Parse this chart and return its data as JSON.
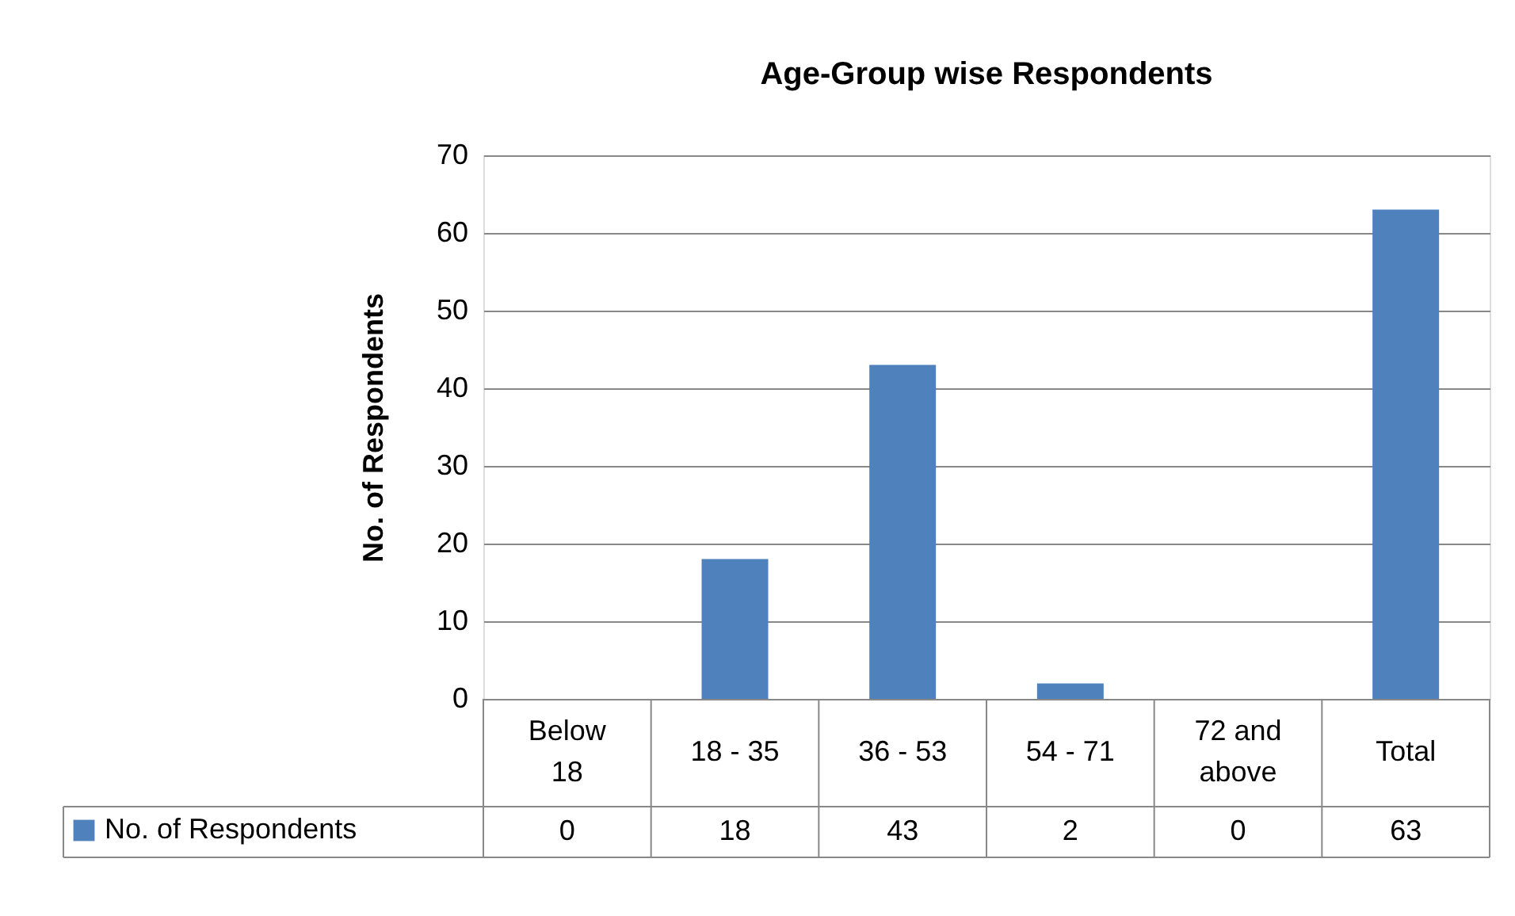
{
  "chart_data": {
    "type": "bar",
    "title": "Age-Group wise Respondents",
    "ylabel": "No. of Respondents",
    "categories": [
      "Below 18",
      "18 - 35",
      "36 - 53",
      "54 - 71",
      "72 and above",
      "Total"
    ],
    "series": [
      {
        "name": "No. of Respondents",
        "color": "#4f81bd",
        "values": [
          0,
          18,
          43,
          2,
          0,
          63
        ]
      }
    ],
    "ylim": [
      0,
      70
    ],
    "yticks": [
      0,
      10,
      20,
      30,
      40,
      50,
      60,
      70
    ],
    "grid": "y",
    "legend": "bottom",
    "data_labels": true
  }
}
